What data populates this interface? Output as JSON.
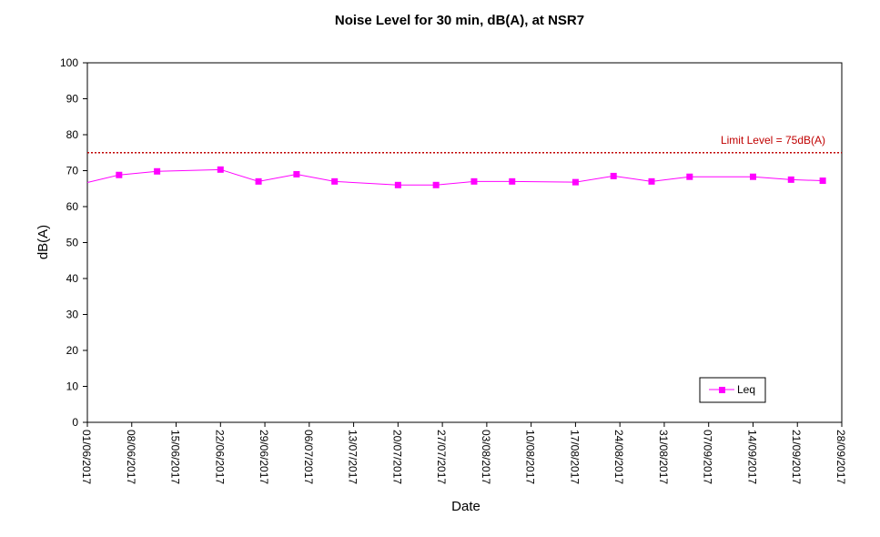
{
  "chart_data": {
    "type": "line",
    "title": "Noise Level for 30 min, dB(A), at NSR7",
    "xlabel": "Date",
    "ylabel": "dB(A)",
    "ylim": [
      0,
      100
    ],
    "yticks": [
      0,
      10,
      20,
      30,
      40,
      50,
      60,
      70,
      80,
      90,
      100
    ],
    "xlim": [
      "2017-06-01",
      "2017-09-28"
    ],
    "xtick_labels": [
      "01/06/2017",
      "08/06/2017",
      "15/06/2017",
      "22/06/2017",
      "29/06/2017",
      "06/07/2017",
      "13/07/2017",
      "20/07/2017",
      "27/07/2017",
      "03/08/2017",
      "10/08/2017",
      "17/08/2017",
      "24/08/2017",
      "31/08/2017",
      "07/09/2017",
      "14/09/2017",
      "21/09/2017",
      "28/09/2017"
    ],
    "grid": false,
    "legend_position": "bottom-right",
    "series": [
      {
        "name": "Leq",
        "color": "#ff00ff",
        "marker": "square",
        "x": [
          "2017-06-06",
          "2017-06-12",
          "2017-06-22",
          "2017-06-28",
          "2017-07-04",
          "2017-07-10",
          "2017-07-20",
          "2017-07-26",
          "2017-08-01",
          "2017-08-07",
          "2017-08-17",
          "2017-08-23",
          "2017-08-29",
          "2017-09-04",
          "2017-09-14",
          "2017-09-20",
          "2017-09-25"
        ],
        "values": [
          68.8,
          69.8,
          70.3,
          67.0,
          69.0,
          67.0,
          66.0,
          66.0,
          67.0,
          67.0,
          66.8,
          68.5,
          67.0,
          68.3,
          68.3,
          67.5,
          67.2
        ]
      }
    ],
    "reference_line": {
      "label": "Limit Level  = 75dB(A)",
      "value": 75,
      "color": "#c00000",
      "style": "dotted"
    }
  }
}
